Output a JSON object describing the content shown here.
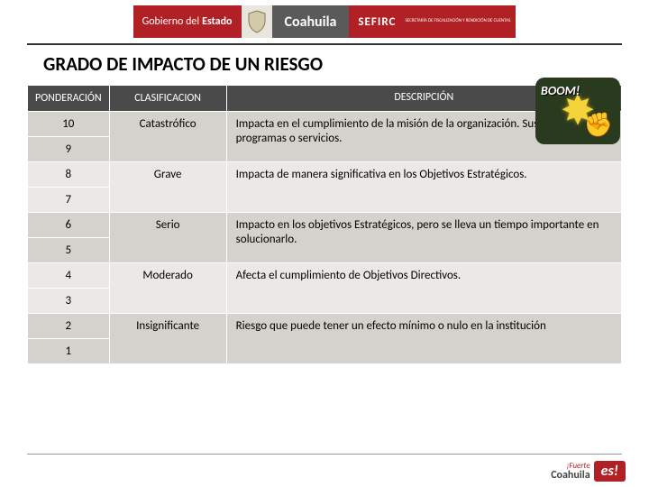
{
  "header": {
    "gob_prefix": "Gobierno del",
    "gob_bold": "Estado",
    "state": "Coahuila",
    "agency": "SEFIRC",
    "agency_desc": "SECRETARÍA DE FISCALIZACIÓN Y RENDICIÓN DE CUENTAS"
  },
  "title": "GRADO DE IMPACTO DE UN RIESGO",
  "boom": {
    "text": "BOOM!"
  },
  "table": {
    "headers": {
      "ponderacion": "PONDERACIÓN",
      "clasificacion": "CLASIFICACION",
      "descripcion": "DESCRIPCIÓN"
    },
    "rows": [
      {
        "p1": "10",
        "p2": "9",
        "clas": "Catastrófico",
        "desc": "Impacta en el cumplimiento de la misión de la organización. Suspende los programas o servicios.",
        "band": "a"
      },
      {
        "p1": "8",
        "p2": "7",
        "clas": "Grave",
        "desc": "Impacta de manera significativa en los Objetivos Estratégicos.",
        "band": "b"
      },
      {
        "p1": "6",
        "p2": "5",
        "clas": "Serio",
        "desc": "Impacto en los objetivos Estratégicos, pero se lleva un tiempo importante en solucionarlo.",
        "band": "a"
      },
      {
        "p1": "4",
        "p2": "3",
        "clas": "Moderado",
        "desc": "Afecta el cumplimiento de Objetivos Directivos.",
        "band": "b"
      },
      {
        "p1": "2",
        "p2": "1",
        "clas": "Insignificante",
        "desc": "Riesgo que puede tener un efecto mínimo o nulo en la institución",
        "band": "a"
      }
    ]
  },
  "footer": {
    "line1": "¡Fuerte",
    "line2": "Coahuila",
    "badge": "es!"
  },
  "colors": {
    "brand_red": "#b02024",
    "header_gray": "#4a4a4a",
    "band_a": "#d4d2cc",
    "band_b": "#eae9e5"
  }
}
